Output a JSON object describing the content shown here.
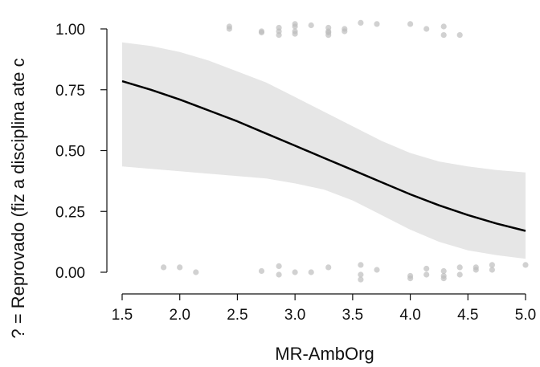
{
  "chart_data": {
    "type": "line",
    "xlabel": "MR-AmbOrg",
    "ylabel": "? = Reprovado (fiz a disciplina ate c",
    "xlim": [
      1.5,
      5.0
    ],
    "ylim": [
      0.0,
      1.0
    ],
    "x_ticks": [
      "1.5",
      "2.0",
      "2.5",
      "3.0",
      "3.5",
      "4.0",
      "4.5",
      "5.0"
    ],
    "y_ticks": [
      "0.00",
      "0.25",
      "0.50",
      "0.75",
      "1.00"
    ],
    "grid": false,
    "colors": {
      "line": "#000000",
      "band": "#e6e6e6",
      "points": "#bdbdbd"
    },
    "series": [
      {
        "type": "line",
        "x": [
          1.5,
          1.75,
          2.0,
          2.25,
          2.5,
          2.75,
          3.0,
          3.25,
          3.5,
          3.75,
          4.0,
          4.25,
          4.5,
          4.75,
          5.0
        ],
        "y": [
          0.785,
          0.75,
          0.71,
          0.665,
          0.62,
          0.57,
          0.52,
          0.47,
          0.42,
          0.37,
          0.32,
          0.275,
          0.235,
          0.2,
          0.17
        ],
        "lower": [
          0.435,
          0.425,
          0.415,
          0.405,
          0.395,
          0.385,
          0.365,
          0.34,
          0.295,
          0.235,
          0.175,
          0.125,
          0.09,
          0.07,
          0.055
        ],
        "upper": [
          0.945,
          0.93,
          0.905,
          0.87,
          0.825,
          0.78,
          0.72,
          0.66,
          0.6,
          0.54,
          0.49,
          0.455,
          0.435,
          0.42,
          0.41
        ]
      },
      {
        "type": "scatter",
        "points": [
          [
            2.43,
            1.0
          ],
          [
            2.43,
            1.01
          ],
          [
            2.71,
            0.985
          ],
          [
            2.71,
            0.99
          ],
          [
            2.86,
            0.99
          ],
          [
            2.86,
            0.975
          ],
          [
            2.86,
            1.005
          ],
          [
            3.0,
            1.01
          ],
          [
            3.0,
            0.99
          ],
          [
            3.0,
            1.02
          ],
          [
            3.0,
            0.98
          ],
          [
            3.14,
            1.015
          ],
          [
            3.29,
            0.985
          ],
          [
            3.29,
            0.99
          ],
          [
            3.29,
            1.005
          ],
          [
            3.29,
            0.975
          ],
          [
            3.43,
            0.99
          ],
          [
            3.43,
            1.0
          ],
          [
            3.57,
            1.025
          ],
          [
            3.71,
            1.02
          ],
          [
            4.0,
            1.02
          ],
          [
            4.14,
            1.0
          ],
          [
            4.29,
            1.01
          ],
          [
            4.29,
            0.975
          ],
          [
            4.43,
            0.975
          ],
          [
            1.86,
            0.02
          ],
          [
            2.0,
            0.02
          ],
          [
            2.14,
            0.0
          ],
          [
            2.71,
            0.005
          ],
          [
            2.86,
            0.025
          ],
          [
            2.86,
            -0.01
          ],
          [
            3.0,
            0.0
          ],
          [
            3.14,
            0.0
          ],
          [
            3.29,
            0.02
          ],
          [
            3.57,
            0.03
          ],
          [
            3.57,
            -0.01
          ],
          [
            3.57,
            -0.03
          ],
          [
            3.71,
            0.01
          ],
          [
            4.0,
            -0.015
          ],
          [
            4.0,
            -0.025
          ],
          [
            4.14,
            0.015
          ],
          [
            4.14,
            -0.01
          ],
          [
            4.29,
            0.005
          ],
          [
            4.29,
            -0.015
          ],
          [
            4.29,
            -0.025
          ],
          [
            4.43,
            0.02
          ],
          [
            4.43,
            -0.01
          ],
          [
            4.57,
            0.01
          ],
          [
            4.57,
            0.02
          ],
          [
            4.71,
            0.03
          ],
          [
            4.71,
            0.01
          ],
          [
            5.0,
            0.03
          ]
        ]
      }
    ]
  }
}
